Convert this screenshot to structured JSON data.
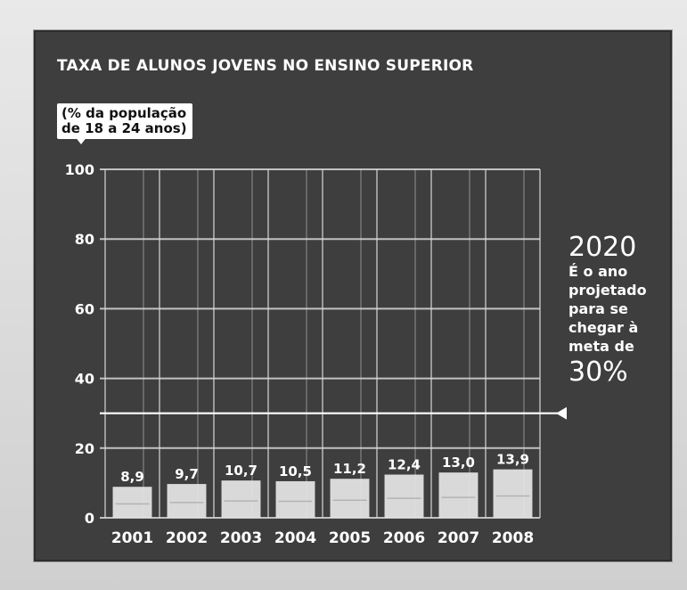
{
  "chart_data": {
    "type": "bar",
    "title": "TAXA DE ALUNOS JOVENS NO ENSINO SUPERIOR",
    "ylabel": "(% da população de 18 a 24 anos)",
    "ylabel_lines": [
      "(% da população",
      "de 18 a 24 anos)"
    ],
    "categories": [
      "2001",
      "2002",
      "2003",
      "2004",
      "2005",
      "2006",
      "2007",
      "2008"
    ],
    "values": [
      8.9,
      9.7,
      10.7,
      10.5,
      11.2,
      12.4,
      13.0,
      13.9
    ],
    "value_labels": [
      "8,9",
      "9,7",
      "10,7",
      "10,5",
      "11,2",
      "12,4",
      "13,0",
      "13,9"
    ],
    "ylim": [
      0,
      100
    ],
    "yticks": [
      0,
      20,
      40,
      60,
      80,
      100
    ],
    "ytick_labels": [
      "0",
      "20",
      "40",
      "60",
      "80",
      "100"
    ],
    "grid": true,
    "target_line": {
      "value": 30,
      "year": "2020",
      "text": "É o ano projetado para se chegar à meta de",
      "label": "30%"
    }
  },
  "colors": {
    "board": "#3e3e3e",
    "chalk": "#ffffff",
    "grid": "#d8d8d8",
    "bar": "#e6e6e6"
  }
}
